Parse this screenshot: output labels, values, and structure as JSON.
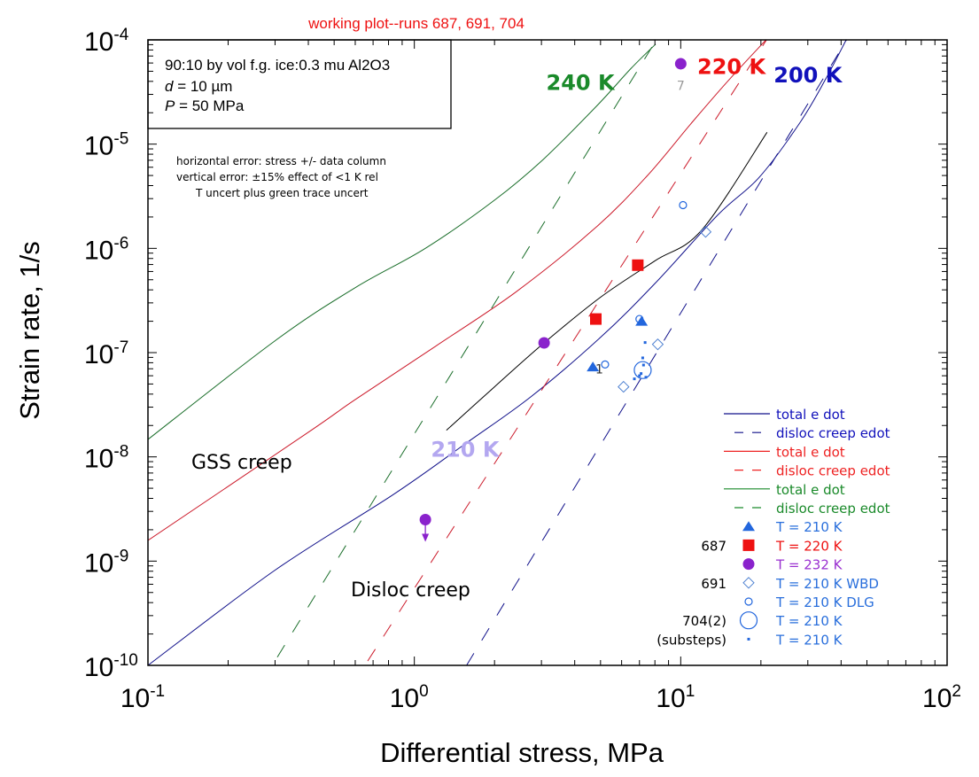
{
  "chart_data": {
    "type": "scatter",
    "title": "working plot--runs 687, 691, 704",
    "xlabel": "Differential stress, MPa",
    "ylabel": "Strain rate, 1/s",
    "xscale": "log",
    "yscale": "log",
    "xlim": [
      0.1,
      100
    ],
    "ylim": [
      1e-10,
      0.0001
    ],
    "x_ticks": [
      {
        "base": "10",
        "exp": "-1",
        "value": 0.1
      },
      {
        "base": "10",
        "exp": "0",
        "value": 1
      },
      {
        "base": "10",
        "exp": "1",
        "value": 10
      },
      {
        "base": "10",
        "exp": "2",
        "value": 100
      }
    ],
    "y_ticks": [
      {
        "base": "10",
        "exp": "-4",
        "value": 0.0001
      },
      {
        "base": "10",
        "exp": "-5",
        "value": 1e-05
      },
      {
        "base": "10",
        "exp": "-6",
        "value": 1e-06
      },
      {
        "base": "10",
        "exp": "-7",
        "value": 1e-07
      },
      {
        "base": "10",
        "exp": "-8",
        "value": 1e-08
      },
      {
        "base": "10",
        "exp": "-9",
        "value": 1e-09
      },
      {
        "base": "10",
        "exp": "-10",
        "value": 1e-10
      }
    ],
    "grid": false,
    "info_box": {
      "line1": "90:10 by vol f.g. ice:0.3 mu Al2O3",
      "line2_var": "d",
      "line2_rest": " = 10 µm",
      "line3_var": "P",
      "line3_rest": " = 50 MPa"
    },
    "error_note": [
      "horizontal error: stress +/- data column",
      "vertical error: ±15% effect of <1 K rel",
      "T uncert plus green trace uncert"
    ],
    "region_labels": {
      "gss": "GSS creep",
      "disloc": "Disloc creep"
    },
    "temperature_labels": [
      {
        "text": "240 K",
        "color": "#1a8a2a",
        "x": 4.2,
        "y": 3.3e-05
      },
      {
        "text": "220 K",
        "color": "#ee1111",
        "x": 15.5,
        "y": 4.7e-05
      },
      {
        "text": "200 K",
        "color": "#1111bb",
        "x": 30,
        "y": 3.9e-05
      },
      {
        "text": "210 K",
        "color": "#b3a7f0",
        "x": 1.55,
        "y": 1e-08
      }
    ],
    "series": [
      {
        "name": "total e dot (200 K)",
        "kind": "line",
        "style": "solid",
        "color": "#10108a",
        "x": [
          0.1,
          0.3,
          0.828,
          1.55,
          2.75,
          5.0,
          8.0,
          13.8,
          19.7,
          28,
          35,
          41.8
        ],
        "y": [
          1e-10,
          8.2e-10,
          4.3e-09,
          1.33e-08,
          3.8e-08,
          1.4e-07,
          4.6e-07,
          2.1e-06,
          4.8e-06,
          1.6e-05,
          4.2e-05,
          0.0001
        ]
      },
      {
        "name": "disloc creep edot (200 K)",
        "kind": "line",
        "style": "dashed",
        "color": "#10108a",
        "x": [
          1.57,
          42
        ],
        "y": [
          1e-10,
          0.0001
        ]
      },
      {
        "name": "total e dot (220 K)",
        "kind": "line",
        "style": "solid",
        "color": "#cc1a2a",
        "x": [
          0.1,
          0.397,
          0.596,
          1.2,
          2.4,
          4.82,
          7.5,
          10.9,
          15,
          20.9
        ],
        "y": [
          1.58e-09,
          1.7e-08,
          3.5e-08,
          1.15e-07,
          3.8e-07,
          1.6e-06,
          5e-06,
          1.56e-05,
          4e-05,
          0.0001
        ]
      },
      {
        "name": "disloc creep edot (220 K)",
        "kind": "line",
        "style": "dashed",
        "color": "#cc1a2a",
        "x": [
          0.668,
          21
        ],
        "y": [
          1.1e-10,
          0.0001
        ]
      },
      {
        "name": "total e dot (240 K)",
        "kind": "line",
        "style": "solid",
        "color": "#1a6e2a",
        "x": [
          0.1,
          0.3,
          0.6,
          1.1,
          2.0,
          3.04,
          4.82,
          6.5,
          8.05
        ],
        "y": [
          1.47e-08,
          1.3e-07,
          4.2e-07,
          1e-06,
          2.9e-06,
          7.1e-06,
          2.3e-05,
          5.3e-05,
          9.1e-05
        ]
      },
      {
        "name": "disloc creep edot (240 K)",
        "kind": "line",
        "style": "dashed",
        "color": "#1a6e2a",
        "x": [
          0.306,
          8.1
        ],
        "y": [
          1.2e-10,
          0.0001
        ]
      },
      {
        "name": "total e dot (210 K)",
        "kind": "line",
        "style": "solid",
        "color": "#000000",
        "x": [
          1.32,
          2.0,
          3.07,
          5.0,
          8.0,
          12.0,
          21.1
        ],
        "y": [
          1.8e-08,
          4.7e-08,
          1.24e-07,
          3.4e-07,
          7.6e-07,
          1.5e-06,
          1.3e-05
        ]
      },
      {
        "name": "T = 210 K",
        "kind": "points",
        "marker": "triangle",
        "color": "#2266dd",
        "run": "",
        "x": [
          4.68,
          7.13
        ],
        "y": [
          7.3e-08,
          2e-07
        ]
      },
      {
        "name": "T = 220 K",
        "kind": "points",
        "marker": "square",
        "color": "#ee1111",
        "run": "687",
        "x": [
          4.8,
          6.9
        ],
        "y": [
          2.1e-07,
          6.9e-07
        ]
      },
      {
        "name": "T = 232 K",
        "kind": "points",
        "marker": "circle-filled",
        "color": "#8a22cc",
        "run": "",
        "x": [
          3.07,
          10.0,
          1.1
        ],
        "y": [
          1.24e-07,
          5.9e-05,
          2.5e-09
        ],
        "upper_limit_index": 2
      },
      {
        "name": "T = 210 K WBD",
        "kind": "points",
        "marker": "diamond-open",
        "color": "#4a7ed0",
        "run": "691",
        "x": [
          12.4,
          8.2,
          6.1
        ],
        "y": [
          1.44e-06,
          1.2e-07,
          4.7e-08
        ]
      },
      {
        "name": "T = 210 K DLG",
        "kind": "points",
        "marker": "circle-open-small",
        "color": "#2266dd",
        "run": "",
        "x": [
          10.2,
          5.2,
          7.0
        ],
        "y": [
          2.6e-06,
          7.7e-08,
          2.1e-07
        ]
      },
      {
        "name": "T = 210 K",
        "kind": "points",
        "marker": "circle-open-large",
        "color": "#2266dd",
        "run": "704(2)",
        "x": [
          7.2
        ],
        "y": [
          6.8e-08
        ]
      },
      {
        "name": "T = 210 K",
        "kind": "points",
        "marker": "dot",
        "color": "#2266dd",
        "run": "(substeps)",
        "x": [
          7.35,
          7.2,
          7.25,
          7.0,
          7.4,
          6.7,
          7.1
        ],
        "y": [
          1.25e-07,
          8.9e-08,
          7.6e-08,
          6e-08,
          5.8e-08,
          5.6e-08,
          6.3e-08
        ]
      }
    ],
    "point_annotations": [
      {
        "text": "7",
        "color": "#999999",
        "x": 10.0,
        "y": 3.3e-05
      },
      {
        "text": "1",
        "color": "#333333",
        "x": 4.95,
        "y": 6.3e-08
      }
    ],
    "legend": {
      "placement": "bottom-right",
      "entries": [
        {
          "symbol": "line-solid",
          "color": "#10108a",
          "label": "total e dot",
          "text_color": "#1111bb",
          "run": ""
        },
        {
          "symbol": "line-dashed",
          "color": "#10108a",
          "label": "disloc creep edot",
          "text_color": "#1111bb",
          "run": ""
        },
        {
          "symbol": "line-solid",
          "color": "#ee2222",
          "label": "total e dot",
          "text_color": "#ee2222",
          "run": ""
        },
        {
          "symbol": "line-dashed",
          "color": "#ee2222",
          "label": "disloc creep edot",
          "text_color": "#ee2222",
          "run": ""
        },
        {
          "symbol": "line-solid",
          "color": "#1a8a2a",
          "label": "total e dot",
          "text_color": "#1a8a2a",
          "run": ""
        },
        {
          "symbol": "line-dashed",
          "color": "#1a8a2a",
          "label": "disloc creep edot",
          "text_color": "#1a8a2a",
          "run": ""
        },
        {
          "symbol": "triangle",
          "color": "#2266dd",
          "label": "T = 210 K",
          "text_color": "#2a6fdc",
          "run": ""
        },
        {
          "symbol": "square",
          "color": "#ee1111",
          "label": "T = 220 K",
          "text_color": "#ee1111",
          "run": "687"
        },
        {
          "symbol": "circle-filled",
          "color": "#8a22cc",
          "label": "T = 232 K",
          "text_color": "#9a30d0",
          "run": ""
        },
        {
          "symbol": "diamond-open",
          "color": "#4a7ed0",
          "label": "T = 210 K WBD",
          "text_color": "#2a6fdc",
          "run": "691"
        },
        {
          "symbol": "circle-open-small",
          "color": "#2266dd",
          "label": "T = 210 K DLG",
          "text_color": "#2a6fdc",
          "run": ""
        },
        {
          "symbol": "circle-open-large",
          "color": "#2266dd",
          "label": "T = 210 K",
          "text_color": "#2a6fdc",
          "run": "704(2)"
        },
        {
          "symbol": "dot",
          "color": "#2266dd",
          "label": "T = 210 K",
          "text_color": "#2a6fdc",
          "run": "(substeps)"
        }
      ]
    }
  }
}
